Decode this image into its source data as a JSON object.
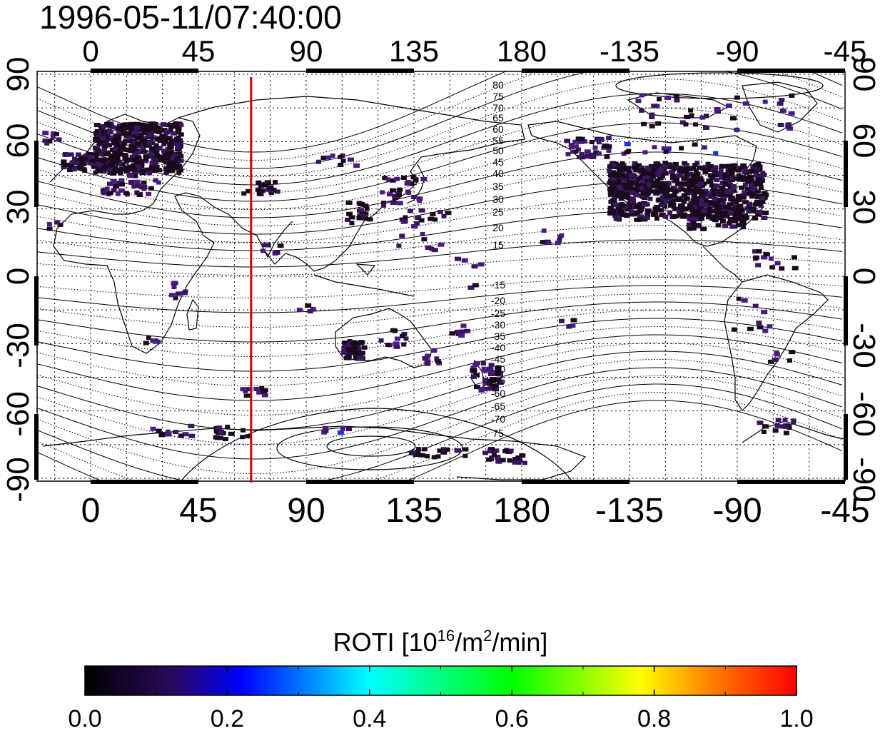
{
  "timestamp": "1996-05-11/07:40:00",
  "map": {
    "lon_ticks": [
      "0",
      "45",
      "90",
      "135",
      "180",
      "-135",
      "-90",
      "-45"
    ],
    "lat_ticks": [
      "90",
      "60",
      "30",
      "0",
      "-30",
      "-60",
      "-90"
    ],
    "magnetic_lat_labels_north": [
      "80",
      "75",
      "70",
      "65",
      "60",
      "55",
      "50",
      "45",
      "40",
      "35",
      "30",
      "25",
      "20",
      "15"
    ],
    "magnetic_lat_labels_south": [
      "-15",
      "-20",
      "-25",
      "-30",
      "-35",
      "-40",
      "-45",
      "-50",
      "-55",
      "-60",
      "-65",
      "-70",
      "75"
    ],
    "terminator_meridian_lon": 67,
    "terminator_color": "#cc0000"
  },
  "colorbar": {
    "title_prefix": "ROTI  [10",
    "title_sup1": "16",
    "title_mid": "/m",
    "title_sup2": "2",
    "title_suffix": "/min]",
    "ticks": [
      "0.0",
      "0.2",
      "0.4",
      "0.6",
      "0.8",
      "1.0"
    ],
    "range": [
      0,
      1
    ],
    "gradient": [
      "#000000",
      "#3a0a6e",
      "#0000ff",
      "#00ffff",
      "#00ff00",
      "#ffff00",
      "#ff8000",
      "#ff0000"
    ]
  },
  "roti_colors": {
    "dark": "#1a0a1e",
    "purple": "#3b1460",
    "violet": "#4a1a82",
    "blue": "#1a2fe0"
  }
}
